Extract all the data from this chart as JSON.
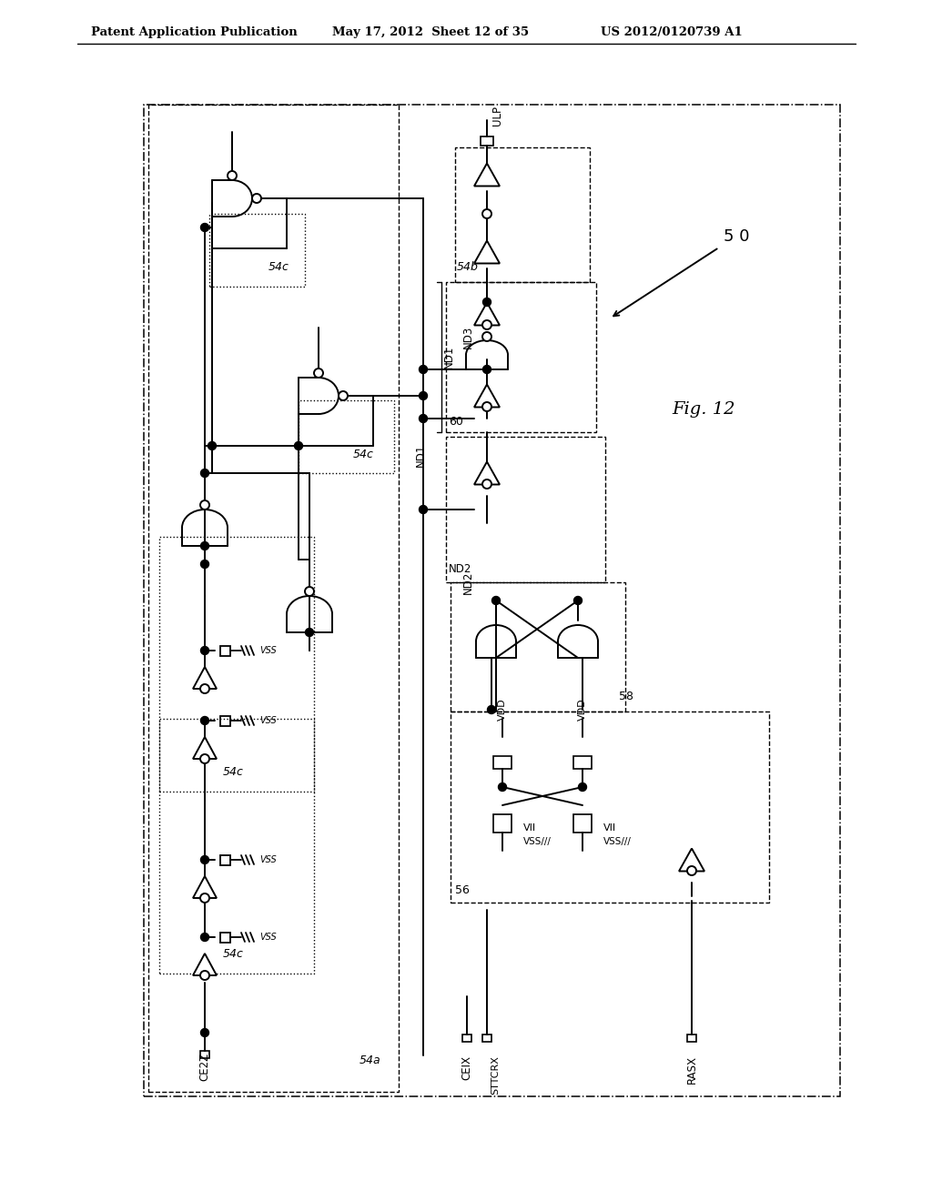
{
  "title_left": "Patent Application Publication",
  "title_mid": "May 17, 2012  Sheet 12 of 35",
  "title_right": "US 2012/0120739 A1",
  "fig_label": "Fig. 12",
  "background": "#ffffff"
}
